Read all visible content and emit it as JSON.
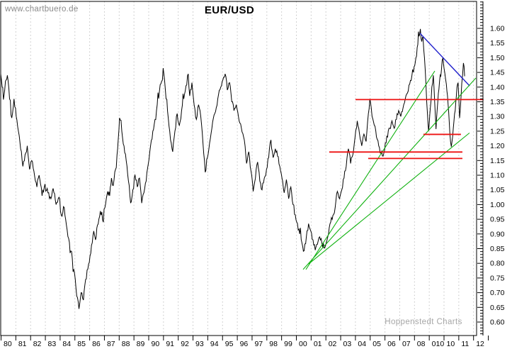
{
  "watermark": "www.chartbuero.de",
  "brand": "Hoppenstedt Charts",
  "chart_data": {
    "type": "line",
    "title": "EUR/USD",
    "grid": "vertical-dashed",
    "legend": "none",
    "colors": {
      "price": "#000000",
      "up_trend": "#12b212",
      "down_trend": "#2222cc",
      "level_line": "#ee1111",
      "grid": "#c2c2c2",
      "axis": "#000000"
    },
    "x_axis": {
      "start_year": 1980,
      "end_year": 2013,
      "tick_labels": [
        "80",
        "81",
        "82",
        "83",
        "84",
        "85",
        "86",
        "87",
        "88",
        "89",
        "90",
        "91",
        "92",
        "93",
        "94",
        "95",
        "96",
        "97",
        "98",
        "99",
        "00",
        "01",
        "02",
        "03",
        "04",
        "05",
        "06",
        "07",
        "08",
        "010",
        "10",
        "11",
        "12"
      ]
    },
    "y_axis": {
      "side": "right",
      "min": 0.6,
      "max": 1.6,
      "major_step": 0.05,
      "minor_step": 0.01,
      "tick_labels": [
        "1.60",
        "1.55",
        "1.50",
        "1.45",
        "1.40",
        "1.35",
        "1.30",
        "1.25",
        "1.20",
        "1.15",
        "1.10",
        "1.05",
        "1.00",
        "0.95",
        "0.90",
        "0.85",
        "0.80",
        "0.75",
        "0.70",
        "0.65",
        "0.60"
      ]
    },
    "series": {
      "name": "EUR/USD",
      "points": [
        [
          1980.0,
          1.445
        ],
        [
          1980.1,
          1.4
        ],
        [
          1980.22,
          1.37
        ],
        [
          1980.32,
          1.42
        ],
        [
          1980.45,
          1.44
        ],
        [
          1980.6,
          1.36
        ],
        [
          1980.75,
          1.295
        ],
        [
          1980.9,
          1.36
        ],
        [
          1981.05,
          1.3
        ],
        [
          1981.2,
          1.25
        ],
        [
          1981.35,
          1.19
        ],
        [
          1981.5,
          1.13
        ],
        [
          1981.65,
          1.17
        ],
        [
          1981.8,
          1.2
        ],
        [
          1981.95,
          1.12
        ],
        [
          1982.1,
          1.15
        ],
        [
          1982.3,
          1.095
        ],
        [
          1982.45,
          1.06
        ],
        [
          1982.6,
          1.1
        ],
        [
          1982.8,
          1.03
        ],
        [
          1983.0,
          1.07
        ],
        [
          1983.2,
          1.04
        ],
        [
          1983.4,
          1.02
        ],
        [
          1983.55,
          1.055
        ],
        [
          1983.75,
          1.0
        ],
        [
          1983.95,
          1.025
        ],
        [
          1984.1,
          0.965
        ],
        [
          1984.3,
          0.99
        ],
        [
          1984.45,
          0.93
        ],
        [
          1984.6,
          0.885
        ],
        [
          1984.8,
          0.84
        ],
        [
          1984.95,
          0.78
        ],
        [
          1985.1,
          0.715
        ],
        [
          1985.3,
          0.645
        ],
        [
          1985.45,
          0.7
        ],
        [
          1985.6,
          0.675
        ],
        [
          1985.75,
          0.745
        ],
        [
          1985.9,
          0.78
        ],
        [
          1986.05,
          0.825
        ],
        [
          1986.2,
          0.87
        ],
        [
          1986.3,
          0.91
        ],
        [
          1986.42,
          0.88
        ],
        [
          1986.55,
          0.93
        ],
        [
          1986.7,
          0.96
        ],
        [
          1986.85,
          0.975
        ],
        [
          1986.95,
          0.94
        ],
        [
          1987.1,
          1.0
        ],
        [
          1987.25,
          1.045
        ],
        [
          1987.38,
          1.03
        ],
        [
          1987.5,
          1.09
        ],
        [
          1987.62,
          1.065
        ],
        [
          1987.78,
          1.12
        ],
        [
          1987.92,
          1.19
        ],
        [
          1988.05,
          1.295
        ],
        [
          1988.2,
          1.25
        ],
        [
          1988.35,
          1.2
        ],
        [
          1988.5,
          1.15
        ],
        [
          1988.65,
          1.08
        ],
        [
          1988.8,
          1.005
        ],
        [
          1988.95,
          1.05
        ],
        [
          1989.1,
          1.1
        ],
        [
          1989.25,
          1.06
        ],
        [
          1989.4,
          1.09
        ],
        [
          1989.55,
          1.005
        ],
        [
          1989.7,
          1.04
        ],
        [
          1989.85,
          1.08
        ],
        [
          1990.0,
          1.14
        ],
        [
          1990.15,
          1.2
        ],
        [
          1990.3,
          1.25
        ],
        [
          1990.45,
          1.29
        ],
        [
          1990.6,
          1.34
        ],
        [
          1990.75,
          1.385
        ],
        [
          1990.9,
          1.42
        ],
        [
          1991.05,
          1.445
        ],
        [
          1991.2,
          1.36
        ],
        [
          1991.35,
          1.295
        ],
        [
          1991.5,
          1.22
        ],
        [
          1991.65,
          1.18
        ],
        [
          1991.8,
          1.25
        ],
        [
          1991.95,
          1.31
        ],
        [
          1992.1,
          1.27
        ],
        [
          1992.25,
          1.32
        ],
        [
          1992.4,
          1.36
        ],
        [
          1992.55,
          1.405
        ],
        [
          1992.7,
          1.445
        ],
        [
          1992.8,
          1.37
        ],
        [
          1992.95,
          1.415
        ],
        [
          1993.1,
          1.34
        ],
        [
          1993.25,
          1.29
        ],
        [
          1993.4,
          1.34
        ],
        [
          1993.55,
          1.3
        ],
        [
          1993.7,
          1.21
        ],
        [
          1993.85,
          1.11
        ],
        [
          1994.0,
          1.16
        ],
        [
          1994.15,
          1.21
        ],
        [
          1994.3,
          1.26
        ],
        [
          1994.5,
          1.31
        ],
        [
          1994.7,
          1.36
        ],
        [
          1994.9,
          1.4
        ],
        [
          1995.05,
          1.425
        ],
        [
          1995.2,
          1.445
        ],
        [
          1995.35,
          1.39
        ],
        [
          1995.5,
          1.415
        ],
        [
          1995.65,
          1.35
        ],
        [
          1995.8,
          1.32
        ],
        [
          1995.95,
          1.34
        ],
        [
          1996.1,
          1.3
        ],
        [
          1996.3,
          1.26
        ],
        [
          1996.5,
          1.22
        ],
        [
          1996.65,
          1.14
        ],
        [
          1996.8,
          1.18
        ],
        [
          1996.95,
          1.115
        ],
        [
          1997.1,
          1.045
        ],
        [
          1997.25,
          1.09
        ],
        [
          1997.4,
          1.145
        ],
        [
          1997.55,
          1.08
        ],
        [
          1997.7,
          1.05
        ],
        [
          1997.85,
          1.09
        ],
        [
          1998.0,
          1.12
        ],
        [
          1998.15,
          1.16
        ],
        [
          1998.3,
          1.22
        ],
        [
          1998.45,
          1.16
        ],
        [
          1998.6,
          1.19
        ],
        [
          1998.75,
          1.165
        ],
        [
          1998.9,
          1.13
        ],
        [
          1999.05,
          1.09
        ],
        [
          1999.2,
          1.04
        ],
        [
          1999.35,
          1.085
        ],
        [
          1999.5,
          1.02
        ],
        [
          1999.65,
          1.06
        ],
        [
          1999.8,
          1.0
        ],
        [
          1999.95,
          0.965
        ],
        [
          2000.1,
          0.935
        ],
        [
          2000.25,
          0.9
        ],
        [
          2000.4,
          0.87
        ],
        [
          2000.55,
          0.843
        ],
        [
          2000.7,
          0.89
        ],
        [
          2000.85,
          0.935
        ],
        [
          2001.0,
          0.91
        ],
        [
          2001.15,
          0.88
        ],
        [
          2001.3,
          0.845
        ],
        [
          2001.45,
          0.865
        ],
        [
          2001.6,
          0.89
        ],
        [
          2001.75,
          0.87
        ],
        [
          2001.9,
          0.852
        ],
        [
          2002.05,
          0.87
        ],
        [
          2002.2,
          0.9
        ],
        [
          2002.35,
          0.94
        ],
        [
          2002.5,
          0.963
        ],
        [
          2002.65,
          0.99
        ],
        [
          2002.8,
          1.045
        ],
        [
          2002.95,
          1.02
        ],
        [
          2003.1,
          1.05
        ],
        [
          2003.25,
          1.09
        ],
        [
          2003.4,
          1.13
        ],
        [
          2003.55,
          1.19
        ],
        [
          2003.7,
          1.14
        ],
        [
          2003.85,
          1.17
        ],
        [
          2004.0,
          1.23
        ],
        [
          2004.15,
          1.285
        ],
        [
          2004.3,
          1.24
        ],
        [
          2004.45,
          1.2
        ],
        [
          2004.6,
          1.24
        ],
        [
          2004.75,
          1.215
        ],
        [
          2004.9,
          1.31
        ],
        [
          2005.0,
          1.36
        ],
        [
          2005.15,
          1.3
        ],
        [
          2005.3,
          1.27
        ],
        [
          2005.45,
          1.23
        ],
        [
          2005.6,
          1.2
        ],
        [
          2005.75,
          1.175
        ],
        [
          2005.9,
          1.165
        ],
        [
          2006.05,
          1.21
        ],
        [
          2006.2,
          1.23
        ],
        [
          2006.35,
          1.26
        ],
        [
          2006.5,
          1.285
        ],
        [
          2006.65,
          1.26
        ],
        [
          2006.8,
          1.29
        ],
        [
          2006.95,
          1.32
        ],
        [
          2007.1,
          1.3
        ],
        [
          2007.25,
          1.33
        ],
        [
          2007.4,
          1.36
        ],
        [
          2007.55,
          1.38
        ],
        [
          2007.7,
          1.41
        ],
        [
          2007.85,
          1.44
        ],
        [
          2008.0,
          1.47
        ],
        [
          2008.12,
          1.5
        ],
        [
          2008.25,
          1.545
        ],
        [
          2008.42,
          1.598
        ],
        [
          2008.52,
          1.555
        ],
        [
          2008.6,
          1.57
        ],
        [
          2008.7,
          1.5
        ],
        [
          2008.8,
          1.41
        ],
        [
          2008.9,
          1.31
        ],
        [
          2008.98,
          1.25
        ],
        [
          2009.1,
          1.33
        ],
        [
          2009.2,
          1.4
        ],
        [
          2009.3,
          1.44
        ],
        [
          2009.4,
          1.34
        ],
        [
          2009.48,
          1.257
        ],
        [
          2009.6,
          1.35
        ],
        [
          2009.72,
          1.42
        ],
        [
          2009.85,
          1.46
        ],
        [
          2009.95,
          1.5
        ],
        [
          2010.07,
          1.45
        ],
        [
          2010.18,
          1.41
        ],
        [
          2010.3,
          1.34
        ],
        [
          2010.42,
          1.24
        ],
        [
          2010.52,
          1.197
        ],
        [
          2010.65,
          1.26
        ],
        [
          2010.78,
          1.32
        ],
        [
          2010.9,
          1.4
        ],
        [
          2010.98,
          1.415
        ],
        [
          2011.08,
          1.295
        ],
        [
          2011.18,
          1.37
        ],
        [
          2011.28,
          1.44
        ],
        [
          2011.34,
          1.482
        ],
        [
          2011.42,
          1.437
        ]
      ]
    },
    "trendlines": [
      {
        "name": "downtrend-2008-2011",
        "color": "#2222cc",
        "width": 1.4,
        "from": [
          2008.4,
          1.583
        ],
        "to": [
          2011.76,
          1.404
        ]
      },
      {
        "name": "uptrend-steep",
        "color": "#12b212",
        "width": 1.1,
        "from": [
          2000.67,
          0.779
        ],
        "to": [
          2009.4,
          1.455
        ]
      },
      {
        "name": "uptrend-middle",
        "color": "#12b212",
        "width": 1.1,
        "from": [
          2000.48,
          0.779
        ],
        "to": [
          2012.18,
          1.431
        ]
      },
      {
        "name": "uptrend-shallow",
        "color": "#12b212",
        "width": 1.1,
        "from": [
          2000.86,
          0.798
        ],
        "to": [
          2011.75,
          1.244
        ]
      }
    ],
    "horizontal_lines": [
      {
        "name": "resistance-1.36",
        "value": 1.3575,
        "from": 2004.03,
        "to": 2012.7,
        "color": "#ee1111"
      },
      {
        "name": "support-1.24",
        "value": 1.239,
        "from": 2008.63,
        "to": 2011.17,
        "color": "#ee1111"
      },
      {
        "name": "support-1.18",
        "value": 1.179,
        "from": 2002.25,
        "to": 2011.27,
        "color": "#ee1111"
      },
      {
        "name": "support-1.16",
        "value": 1.157,
        "from": 2004.89,
        "to": 2011.27,
        "color": "#ee1111"
      }
    ]
  }
}
